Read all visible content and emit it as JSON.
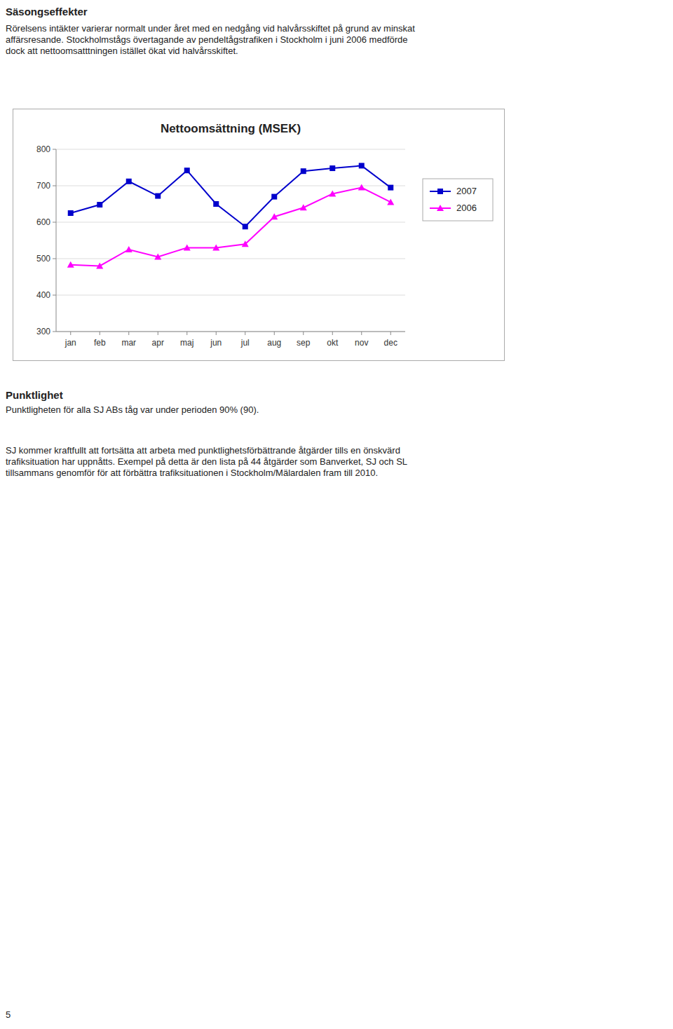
{
  "chart_data": {
    "type": "line",
    "title": "Nettoomsättning (MSEK)",
    "categories": [
      "jan",
      "feb",
      "mar",
      "apr",
      "maj",
      "jun",
      "jul",
      "aug",
      "sep",
      "okt",
      "nov",
      "dec"
    ],
    "series": [
      {
        "name": "2007",
        "color": "#0000CC",
        "marker": "square",
        "values": [
          625,
          648,
          712,
          672,
          742,
          650,
          588,
          670,
          740,
          748,
          755,
          695
        ]
      },
      {
        "name": "2006",
        "color": "#FF00FF",
        "marker": "triangle",
        "values": [
          483,
          480,
          525,
          505,
          530,
          530,
          540,
          615,
          640,
          678,
          695,
          655
        ]
      }
    ],
    "ylim": [
      300,
      800
    ],
    "yticks": [
      300,
      400,
      500,
      600,
      700,
      800
    ],
    "grid": true,
    "legend": "right"
  },
  "page": {
    "headings": [
      "Säsongseffekter",
      "Punktlighet"
    ],
    "paragraphs": [
      [
        "Rörelsens intäkter varierar normalt under året med en nedgång vid halvårsskiftet på grund av minskat",
        "affärsresande. Stockholmstågs övertagande av pendeltågstrafiken i Stockholm i juni 2006 medförde",
        "dock att nettoomsatttningen istället ökat vid halvårsskiftet."
      ],
      [
        "Punktligheten för alla SJ ABs tåg var under perioden 90% (90)."
      ],
      [
        "SJ kommer kraftfullt att fortsätta att arbeta med punktlighetsförbättrande åtgärder tills en önskvärd",
        "trafiksituation har uppnåtts. Exempel på detta är den lista på 44 åtgärder som Banverket, SJ och SL",
        "tillsammans genomför för att förbättra trafiksituationen i Stockholm/Mälardalen fram till 2010."
      ]
    ],
    "page_number": "5"
  }
}
